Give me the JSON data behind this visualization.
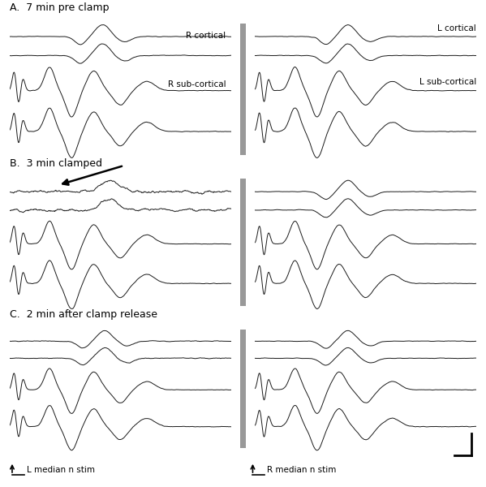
{
  "panel_labels": [
    "A.  7 min pre clamp",
    "B.  3 min clamped",
    "C.  2 min after clamp release"
  ],
  "label_R_cortical": "R cortical",
  "label_L_cortical": "L cortical",
  "label_R_subcortical": "R sub-cortical",
  "label_L_subcortical": "L sub-cortical",
  "label_L_stim": "L median n stim",
  "label_R_stim": "R median n stim",
  "bg_color": "#ffffff",
  "trace_color": "#1a1a1a",
  "bar_color": "#999999",
  "figsize": [
    5.99,
    6.0
  ],
  "dpi": 100
}
